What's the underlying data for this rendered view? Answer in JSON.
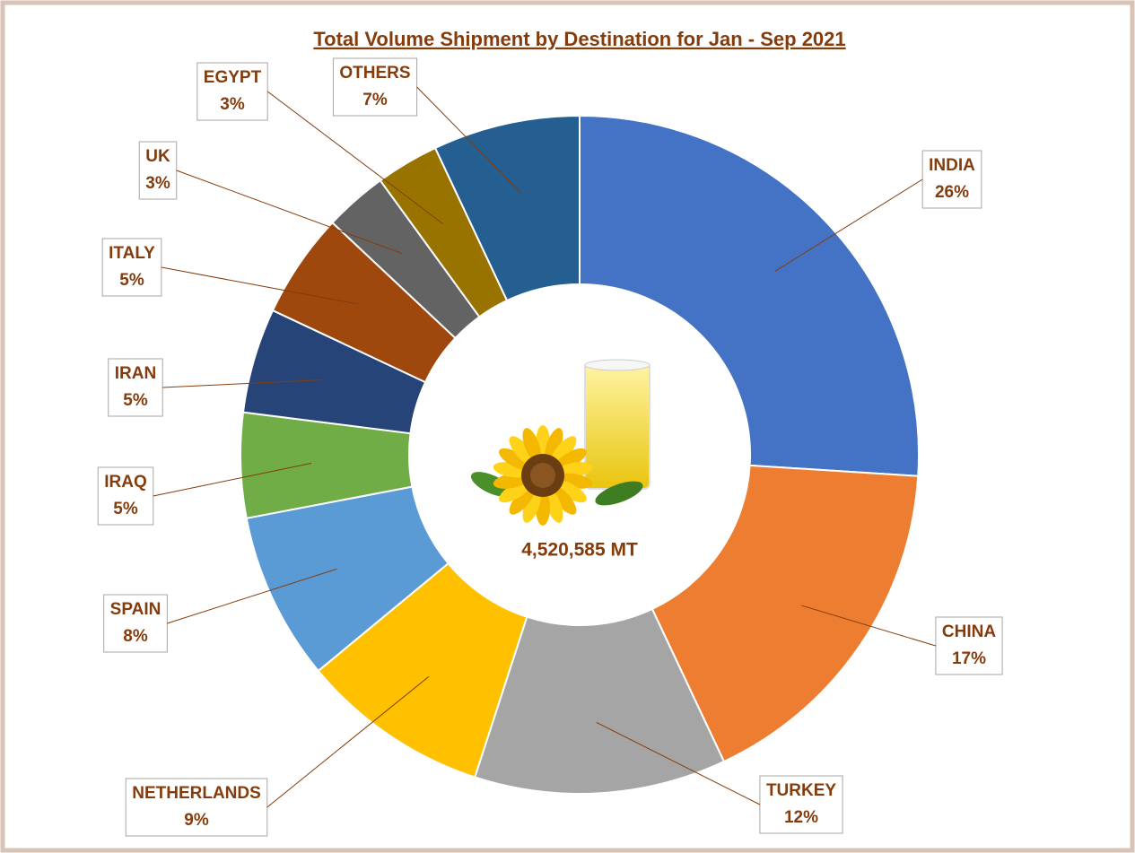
{
  "chart_data": {
    "type": "donut",
    "title": "Total Volume Shipment by Destination for Jan - Sep 2021",
    "center_label": "4,520,585 MT",
    "categories": [
      "INDIA",
      "CHINA",
      "TURKEY",
      "NETHERLANDS",
      "SPAIN",
      "IRAQ",
      "IRAN",
      "ITALY",
      "UK",
      "EGYPT",
      "OTHERS"
    ],
    "values": [
      26,
      17,
      12,
      9,
      8,
      5,
      5,
      5,
      3,
      3,
      7
    ],
    "value_labels": [
      "26%",
      "17%",
      "12%",
      "9%",
      "8%",
      "5%",
      "5%",
      "5%",
      "3%",
      "3%",
      "7%"
    ],
    "colors": [
      "#4472c4",
      "#ed7d31",
      "#a5a5a5",
      "#ffc000",
      "#5b9bd5",
      "#70ad47",
      "#264478",
      "#9e480e",
      "#636363",
      "#997300",
      "#255e91"
    ]
  }
}
